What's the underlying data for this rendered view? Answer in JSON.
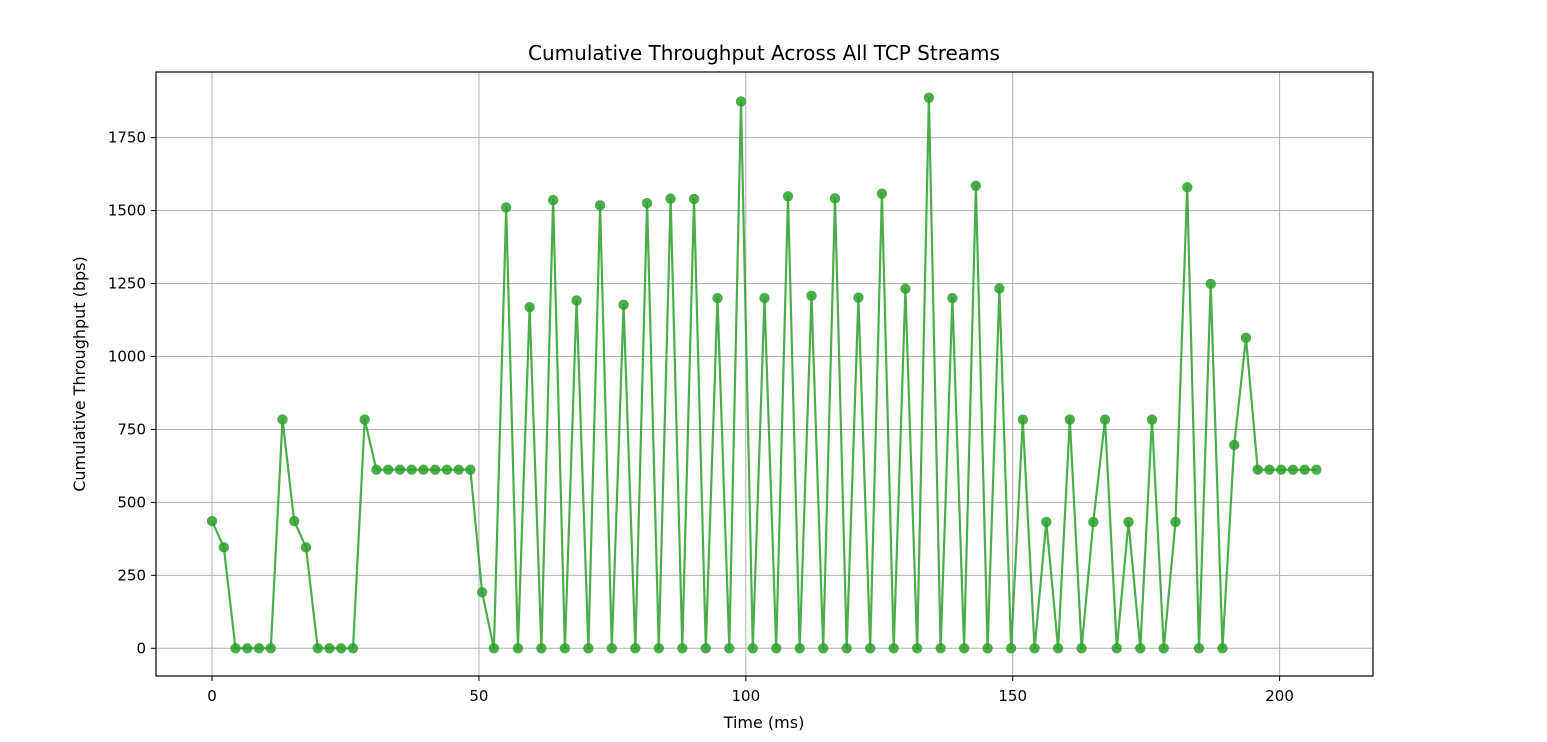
{
  "chart_data": {
    "type": "line",
    "title": "Cumulative Throughput Across All TCP Streams",
    "xlabel": "Time (ms)",
    "ylabel": "Cumulative Throughput (bps)",
    "xlim": [
      -10.5,
      217.5
    ],
    "ylim": [
      -95,
      1975
    ],
    "xticks": [
      0,
      50,
      100,
      150,
      200
    ],
    "yticks": [
      0,
      250,
      500,
      750,
      1000,
      1250,
      1500,
      1750
    ],
    "grid": true,
    "marker": "circle",
    "color": "#2ca02c",
    "series": [
      {
        "x": [
          0,
          2.2,
          4.4,
          6.6,
          8.8,
          11,
          13.2,
          15.4,
          17.6,
          19.8,
          22,
          24.2,
          26.4,
          28.6,
          30.8,
          33,
          35.2,
          37.4,
          39.6,
          41.8,
          44,
          46.2,
          48.4,
          50.6,
          52.8,
          55.1,
          57.3,
          59.5,
          61.7,
          63.9,
          66.1,
          68.3,
          70.5,
          72.7,
          74.9,
          77.1,
          79.3,
          81.5,
          83.7,
          85.9,
          88.1,
          90.3,
          92.5,
          94.7,
          96.9,
          99.1,
          101.3,
          103.5,
          105.7,
          107.9,
          110.1,
          112.3,
          114.5,
          116.7,
          118.9,
          121.1,
          123.3,
          125.5,
          127.7,
          129.9,
          132.1,
          134.3,
          136.5,
          138.7,
          140.9,
          143.1,
          145.3,
          147.5,
          149.7,
          151.9,
          154.1,
          156.3,
          158.5,
          160.7,
          162.9,
          165.1,
          167.3,
          169.5,
          171.7,
          173.9,
          176.1,
          178.3,
          180.5,
          182.7,
          184.9,
          187.1,
          189.3,
          191.5,
          193.7,
          195.9,
          198.1,
          200.3,
          202.5,
          204.7,
          206.9
        ],
        "y": [
          436,
          346,
          0,
          0,
          0,
          0,
          784,
          436,
          346,
          0,
          0,
          0,
          0,
          784,
          612,
          612,
          612,
          612,
          612,
          612,
          612,
          612,
          612,
          192,
          0,
          1511,
          0,
          1169,
          0,
          1536,
          0,
          1192,
          0,
          1518,
          0,
          1177,
          0,
          1526,
          0,
          1541,
          0,
          1540,
          0,
          1200,
          0,
          1874,
          0,
          1200,
          0,
          1549,
          0,
          1208,
          0,
          1542,
          0,
          1202,
          0,
          1558,
          0,
          1232,
          0,
          1887,
          0,
          1200,
          0,
          1585,
          0,
          1233,
          0,
          784,
          0,
          433,
          0,
          784,
          0,
          433,
          784,
          0,
          433,
          0,
          784,
          0,
          433,
          1580,
          0,
          1249,
          0,
          697,
          1064,
          612,
          612,
          612,
          612,
          612,
          612
        ]
      }
    ]
  }
}
